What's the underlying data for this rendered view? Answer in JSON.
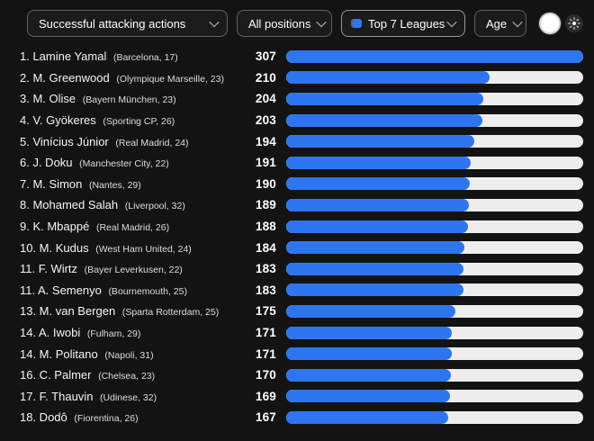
{
  "colors": {
    "background": "#131313",
    "bar_fill": "#2e76f0",
    "bar_track": "#ededed",
    "dropdown_bg": "#1b1b1c",
    "dropdown_border": "#616161",
    "text": "#f5f5f5"
  },
  "toolbar": {
    "metric_dropdown": {
      "label": "Successful attacking actions",
      "icon": "chevron-down"
    },
    "positions_dropdown": {
      "label": "All positions",
      "icon": "chevron-down"
    },
    "leagues_dropdown": {
      "label": "Top 7 Leagues",
      "icon": "chevron-down",
      "badge_icon": "blue-dot"
    },
    "age_dropdown": {
      "label": "Age",
      "icon": "chevron-down"
    },
    "theme_toggle": {
      "icon": "filled-circle"
    },
    "light_mode_button": {
      "icon": "sun"
    }
  },
  "chart_data": {
    "type": "bar",
    "orientation": "horizontal",
    "title": "Successful attacking actions",
    "xlim": [
      0,
      307
    ],
    "legend": "none",
    "players": [
      {
        "rank": "1",
        "name": "Lamine Yamal",
        "club": "Barcelona",
        "age": 17,
        "value": 307
      },
      {
        "rank": "2",
        "name": "M. Greenwood",
        "club": "Olympique Marseille",
        "age": 23,
        "value": 210
      },
      {
        "rank": "3",
        "name": "M. Olise",
        "club": "Bayern München",
        "age": 23,
        "value": 204
      },
      {
        "rank": "4",
        "name": "V. Gyökeres",
        "club": "Sporting CP",
        "age": 26,
        "value": 203
      },
      {
        "rank": "5",
        "name": "Vinícius Júnior",
        "club": "Real Madrid",
        "age": 24,
        "value": 194
      },
      {
        "rank": "6",
        "name": "J. Doku",
        "club": "Manchester City",
        "age": 22,
        "value": 191
      },
      {
        "rank": "7",
        "name": "M. Simon",
        "club": "Nantes",
        "age": 29,
        "value": 190
      },
      {
        "rank": "8",
        "name": "Mohamed Salah",
        "club": "Liverpool",
        "age": 32,
        "value": 189
      },
      {
        "rank": "9",
        "name": "K. Mbappé",
        "club": "Real Madrid",
        "age": 26,
        "value": 188
      },
      {
        "rank": "10",
        "name": "M. Kudus",
        "club": "West Ham United",
        "age": 24,
        "value": 184
      },
      {
        "rank": "11",
        "name": "F. Wirtz",
        "club": "Bayer Leverkusen",
        "age": 22,
        "value": 183
      },
      {
        "rank": "11",
        "name": "A. Semenyo",
        "club": "Bournemouth",
        "age": 25,
        "value": 183
      },
      {
        "rank": "13",
        "name": "M. van Bergen",
        "club": "Sparta Rotterdam",
        "age": 25,
        "value": 175
      },
      {
        "rank": "14",
        "name": "A. Iwobi",
        "club": "Fulham",
        "age": 29,
        "value": 171
      },
      {
        "rank": "14",
        "name": "M. Politano",
        "club": "Napoli",
        "age": 31,
        "value": 171
      },
      {
        "rank": "16",
        "name": "C. Palmer",
        "club": "Chelsea",
        "age": 23,
        "value": 170
      },
      {
        "rank": "17",
        "name": "F. Thauvin",
        "club": "Udinese",
        "age": 32,
        "value": 169
      },
      {
        "rank": "18",
        "name": "Dodô",
        "club": "Fiorentina",
        "age": 26,
        "value": 167
      }
    ]
  }
}
